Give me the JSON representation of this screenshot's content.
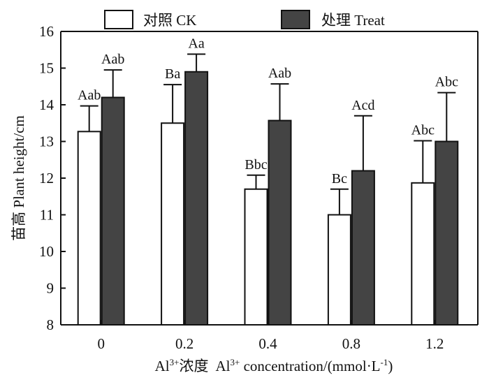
{
  "chart_data": {
    "type": "bar",
    "categories": [
      "0",
      "0.2",
      "0.4",
      "0.8",
      "1.2"
    ],
    "series": [
      {
        "name": "对照 CK",
        "color": "#ffffff",
        "values": [
          13.27,
          13.5,
          11.7,
          11.0,
          11.87
        ],
        "errors": [
          0.7,
          1.05,
          0.38,
          0.7,
          1.15
        ],
        "labels": [
          "Aab",
          "Ba",
          "Bbc",
          "Bc",
          "Abc"
        ]
      },
      {
        "name": "处理 Treat",
        "color": "#444444",
        "values": [
          14.2,
          14.9,
          13.57,
          12.2,
          13.0
        ],
        "errors": [
          0.75,
          0.48,
          1.0,
          1.5,
          1.33
        ],
        "labels": [
          "Aab",
          "Aa",
          "Aab",
          "Acd",
          "Abc"
        ]
      }
    ],
    "ylim": [
      8,
      16
    ],
    "yticks": [
      8,
      9,
      10,
      11,
      12,
      13,
      14,
      15,
      16
    ],
    "ylabel": "苗高 Plant height/cm",
    "xlabel": {
      "prefix": "Al",
      "sup": "3+",
      "cn": "浓度",
      "prefix2": "Al",
      "sup2": "3+",
      "rest": " concentration/(mmol·L",
      "sup3": "-1",
      "end": ")"
    },
    "legend_position": "top"
  }
}
